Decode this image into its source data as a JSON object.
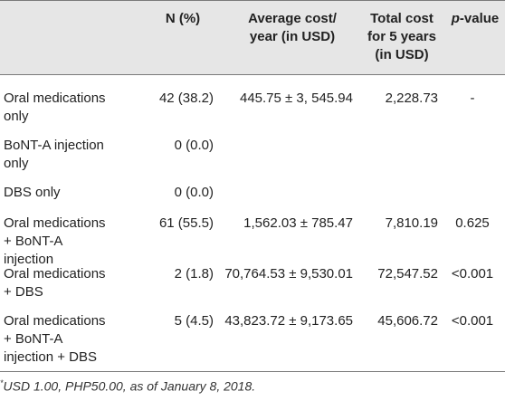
{
  "header": {
    "col_n": "N (%)",
    "col_avg": "Average cost/\nyear (in USD)",
    "col_total": "Total cost\nfor 5 years\n(in USD)",
    "col_p_italic": "p",
    "col_p_rest": "-value"
  },
  "rows": [
    {
      "label": "Oral medications\nonly",
      "n": "42 (38.2)",
      "avg": "445.75 ± 3, 545.94",
      "total": "2,228.73",
      "p": "-"
    },
    {
      "label": "BoNT-A injection\nonly",
      "n": "0 (0.0)",
      "avg": "",
      "total": "",
      "p": ""
    },
    {
      "label": "DBS only",
      "n": "0 (0.0)",
      "avg": "",
      "total": "",
      "p": ""
    },
    {
      "label": "Oral medications\n+ BoNT-A\ninjection",
      "n": "61 (55.5)",
      "avg": "1,562.03 ± 785.47",
      "total": "7,810.19",
      "p": "0.625"
    },
    {
      "label": "Oral medications\n+ DBS",
      "n": "2 (1.8)",
      "avg": "70,764.53 ± 9,530.01",
      "total": "72,547.52",
      "p": "<0.001"
    },
    {
      "label": "Oral medications\n+ BoNT-A\ninjection + DBS",
      "n": "5 (4.5)",
      "avg": "43,823.72 ± 9,173.65",
      "total": "45,606.72",
      "p": "<0.001"
    }
  ],
  "footnote": {
    "marker": "*",
    "text": "USD 1.00, PHP50.00, as of January 8, 2018."
  }
}
